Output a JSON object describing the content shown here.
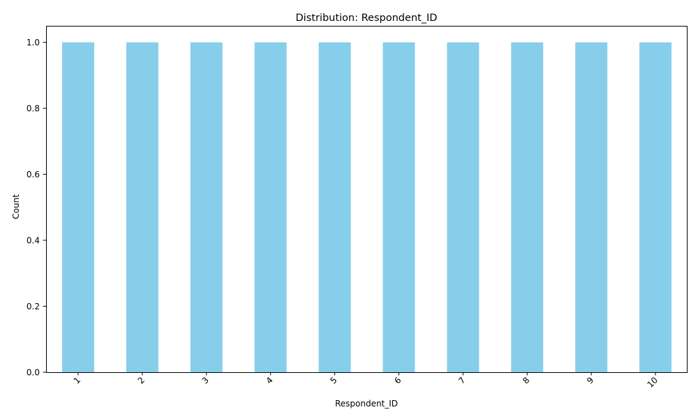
{
  "chart_data": {
    "type": "bar",
    "title": "Distribution: Respondent_ID",
    "xlabel": "Respondent_ID",
    "ylabel": "Count",
    "categories": [
      "1",
      "2",
      "3",
      "4",
      "5",
      "6",
      "7",
      "8",
      "9",
      "10"
    ],
    "values": [
      1,
      1,
      1,
      1,
      1,
      1,
      1,
      1,
      1,
      1
    ],
    "ylim": [
      0,
      1.05
    ],
    "yticks": [
      "0.0",
      "0.2",
      "0.4",
      "0.6",
      "0.8",
      "1.0"
    ],
    "ytick_values": [
      0,
      0.2,
      0.4,
      0.6,
      0.8,
      1.0
    ],
    "bar_color": "#87CEEB",
    "grid": false,
    "legend": "none"
  }
}
